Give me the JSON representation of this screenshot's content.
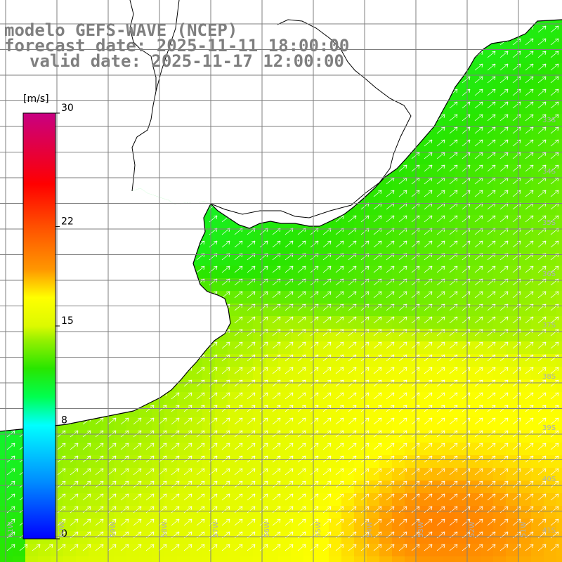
{
  "title": {
    "model": "modelo GEFS-WAVE (NCEP)",
    "forecast": "forecast date: 2025-11-11 18:00:00",
    "valid": "valid date: 2025-11-17 12:00:00"
  },
  "colorbar": {
    "unit": "[m/s]",
    "range": [
      0,
      30
    ],
    "ticks": [
      {
        "value": 30,
        "label": "30"
      },
      {
        "value": 22,
        "label": "22"
      },
      {
        "value": 15,
        "label": "15"
      },
      {
        "value": 8,
        "label": "8"
      },
      {
        "value": 0,
        "label": "0"
      }
    ],
    "colors": [
      "#0000ff",
      "#00aaff",
      "#00ffff",
      "#00ff40",
      "#20e000",
      "#a0f000",
      "#ffff00",
      "#ff8800",
      "#ff0000",
      "#c00080"
    ]
  },
  "latitude_labels": [
    "33S",
    "34S",
    "35S",
    "36S",
    "37S",
    "38S",
    "39S",
    "40S",
    "41S"
  ],
  "longitude_labels": [
    "61W",
    "60W",
    "59W",
    "58W",
    "57W",
    "56W",
    "55W",
    "54W",
    "53W",
    "52W",
    "51W"
  ],
  "colors": {
    "land": "#ffffff",
    "coast": "#000000",
    "grid": "#7f7f7f",
    "arrows": "#ffffff",
    "title_text": "#7f7f7f"
  },
  "chart_data": {
    "type": "heatmap",
    "variable": "wind speed",
    "unit": "m/s",
    "lon_range": [
      -61.2,
      -50.2
    ],
    "lat_range": [
      -41.3,
      -31.2
    ],
    "wind_direction": "from southwest, toward northeast",
    "speed_estimates": [
      {
        "region": "nearshore north",
        "min": 8,
        "max": 10
      },
      {
        "region": "central shelf",
        "min": 11,
        "max": 14
      },
      {
        "region": "offshore southeast",
        "min": 15,
        "max": 18
      },
      {
        "region": "peak near 41S 53W",
        "min": 18,
        "max": 20
      }
    ]
  }
}
